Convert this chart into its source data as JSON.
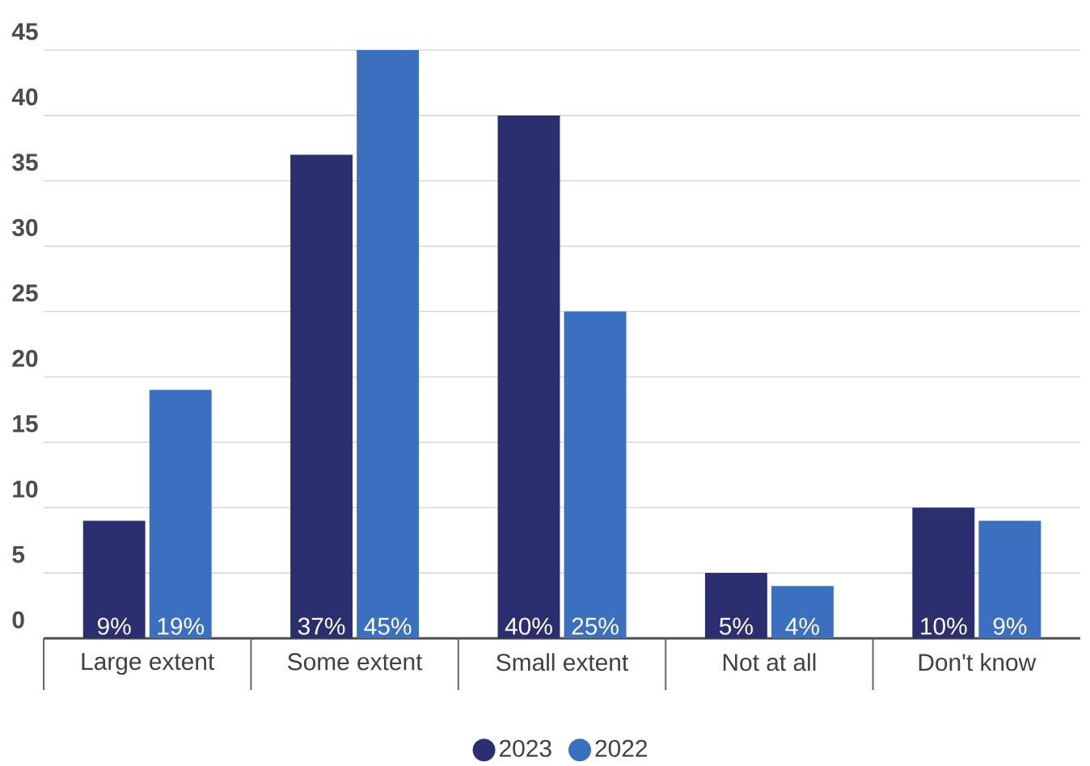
{
  "chart_data": {
    "type": "bar",
    "categories": [
      "Large extent",
      "Some extent",
      "Small extent",
      "Not at all",
      "Don't know"
    ],
    "series": [
      {
        "name": "2023",
        "color": "#2b2f6f",
        "values": [
          9,
          37,
          40,
          5,
          10
        ],
        "value_labels": [
          "9%",
          "37%",
          "40%",
          "5%",
          "10%"
        ]
      },
      {
        "name": "2022",
        "color": "#3a70bf",
        "values": [
          19,
          45,
          25,
          4,
          9
        ],
        "value_labels": [
          "19%",
          "45%",
          "25%",
          "4%",
          "9%"
        ]
      }
    ],
    "ylim": [
      0,
      45
    ],
    "yticks": [
      0,
      5,
      10,
      15,
      20,
      25,
      30,
      35,
      40,
      45
    ],
    "grid": "y",
    "legend": "bottom"
  }
}
